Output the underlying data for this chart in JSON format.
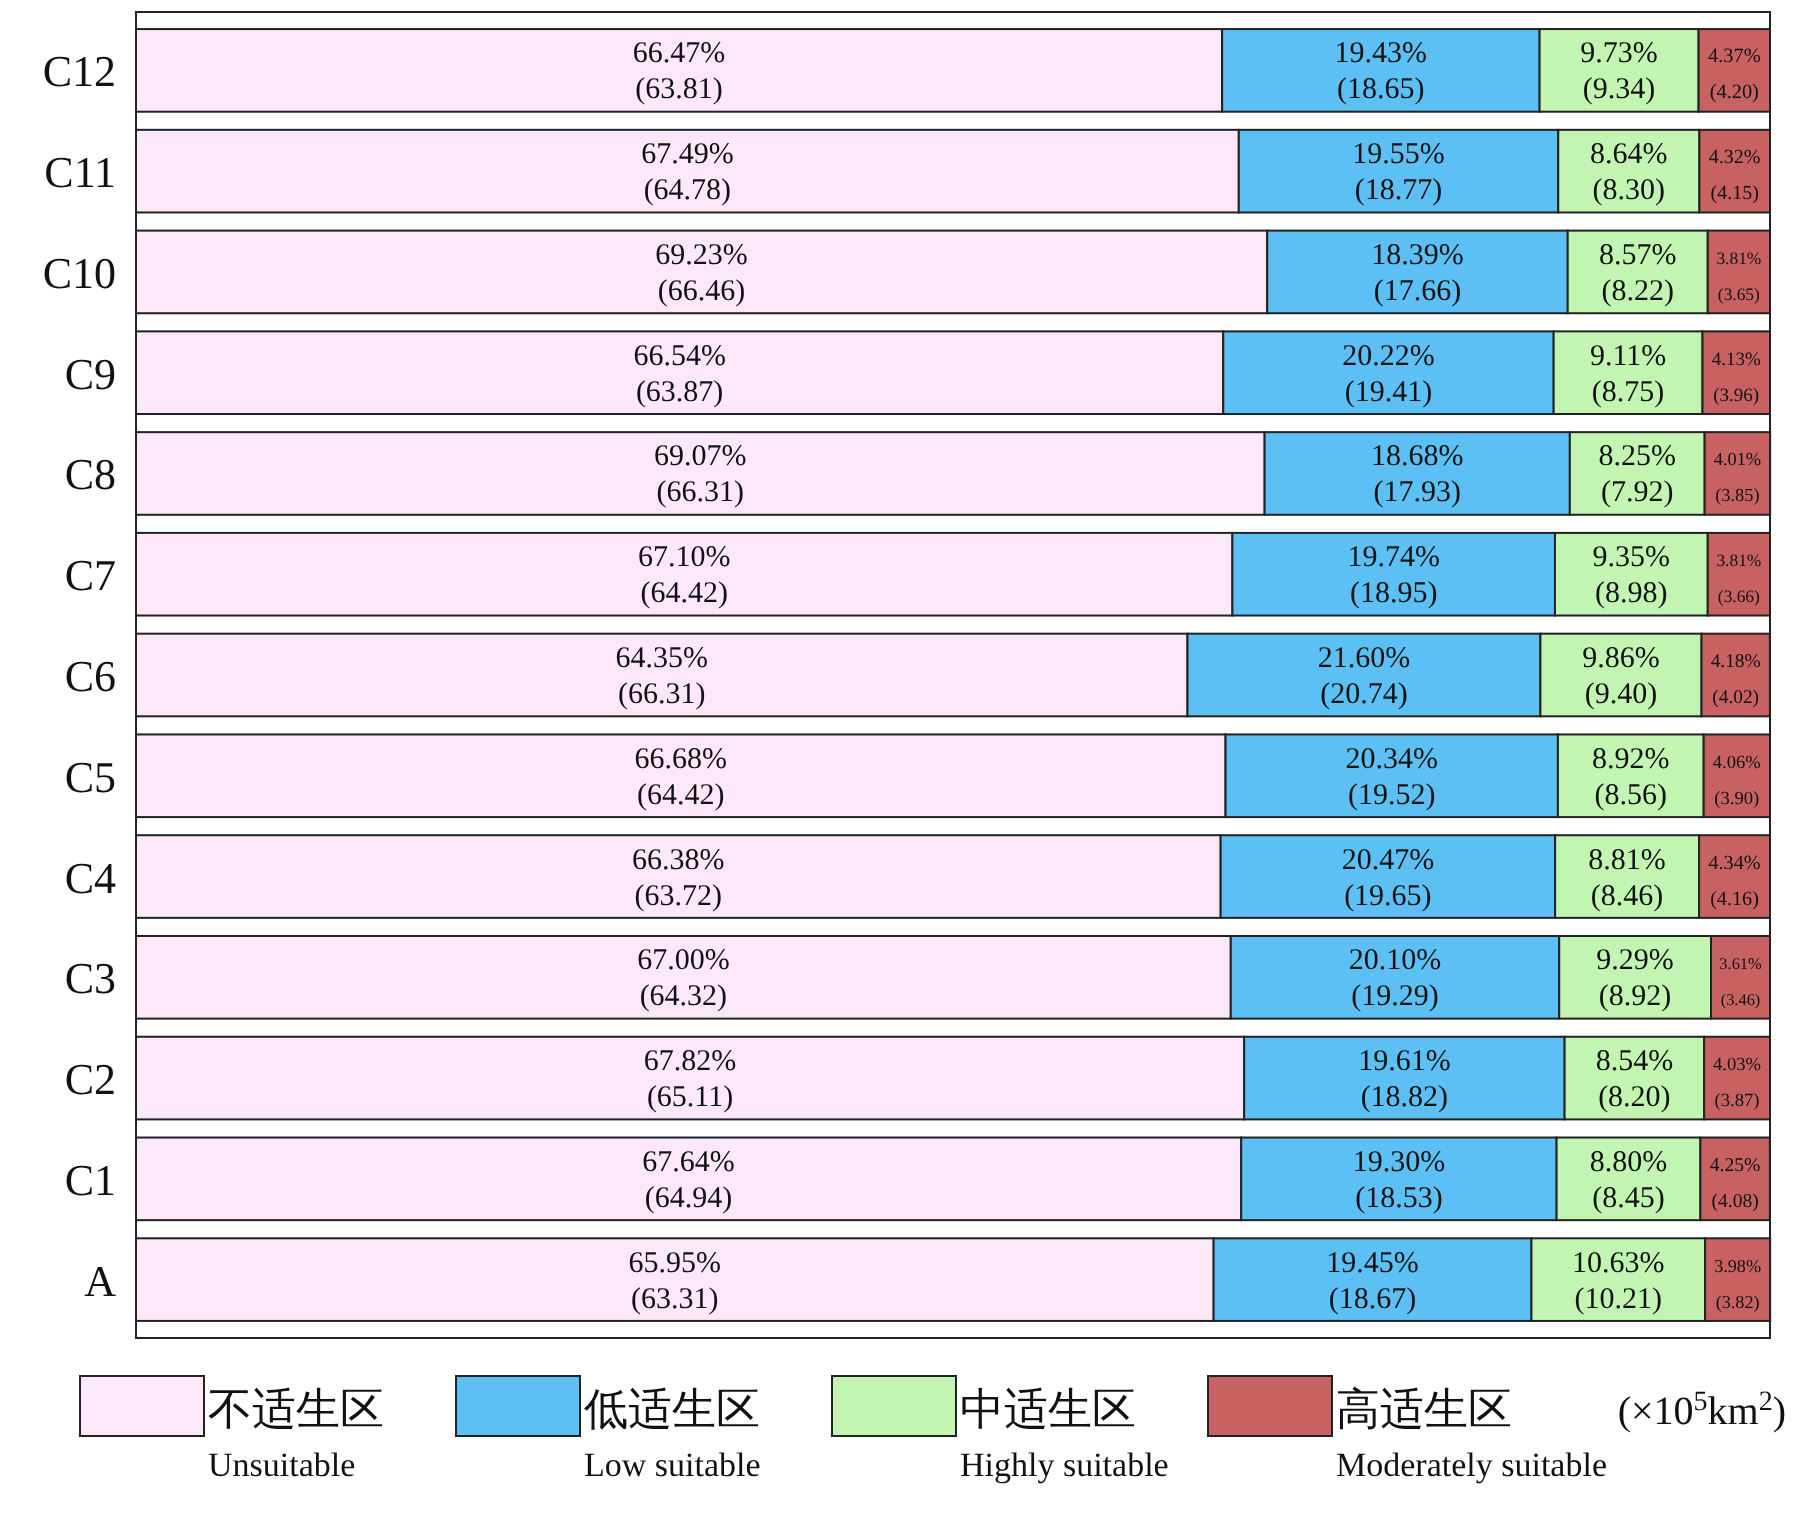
{
  "chart_data": {
    "type": "bar",
    "orientation": "horizontal",
    "stacked": true,
    "legend": "bottom",
    "xlim": [
      0,
      100
    ],
    "categories": [
      "C12",
      "C11",
      "C10",
      "C9",
      "C8",
      "C7",
      "C6",
      "C5",
      "C4",
      "C3",
      "C2",
      "C1",
      "A"
    ],
    "annotations": [
      "(×10$^{5}$km$^{2}$)"
    ],
    "series": [
      {
        "name": "不适生区\nUnsuitable",
        "color": "#fce8f8",
        "values": [
          66.47,
          67.49,
          69.23,
          66.54,
          69.07,
          67.1,
          64.35,
          66.68,
          66.38,
          67.0,
          67.82,
          67.64,
          65.95
        ],
        "value_labels": [
          "66.47%\n(63.81)",
          "67.49%\n(64.78)",
          "69.23%\n(66.46)",
          "66.54%\n(63.87)",
          "69.07%\n(66.31)",
          "67.10%\n(64.42)",
          "64.35%\n(66.31)",
          "66.68%\n(64.42)",
          "66.38%\n(63.72)",
          "67.00%\n(64.32)",
          "67.82%\n(65.11)",
          "67.64%\n(64.94)",
          "65.95%\n(63.31)"
        ]
      },
      {
        "name": "低适生区\nLow suitable",
        "color": "#5cc0f5",
        "values": [
          19.43,
          19.55,
          18.39,
          20.22,
          18.68,
          19.74,
          21.6,
          20.34,
          20.47,
          20.1,
          19.61,
          19.3,
          19.45
        ],
        "value_labels": [
          "19.43%\n(18.65)",
          "19.55%\n(18.77)",
          "18.39%\n(17.66)",
          "20.22%\n(19.41)",
          "18.68%\n(17.93)",
          "19.74%\n(18.95)",
          "21.60%\n(20.74)",
          "20.34%\n(19.52)",
          "20.47%\n(19.65)",
          "20.10%\n(19.29)",
          "19.61%\n(18.82)",
          "19.30%\n(18.53)",
          "19.45%\n(18.67)"
        ]
      },
      {
        "name": "中适生区\nHighly suitable",
        "color": "#c2f5b2",
        "values": [
          9.73,
          8.64,
          8.57,
          9.11,
          8.25,
          9.35,
          9.86,
          8.92,
          8.81,
          9.29,
          8.54,
          8.8,
          10.63
        ],
        "value_labels": [
          "9.73%\n(9.34)",
          "8.64%\n(8.30)",
          "8.57%\n(8.22)",
          "9.11%\n(8.75)",
          "8.25%\n(7.92)",
          "9.35%\n(8.98)",
          "9.86%\n(9.40)",
          "8.92%\n(8.56)",
          "8.81%\n(8.46)",
          "9.29%\n(8.92)",
          "8.54%\n(8.20)",
          "8.80%\n(8.45)",
          "10.63%\n(10.21)"
        ]
      },
      {
        "name": "高适生区\nModerately suitable",
        "color": "#c86262",
        "values": [
          4.37,
          4.32,
          3.81,
          4.13,
          4.01,
          3.81,
          4.18,
          4.06,
          4.34,
          3.61,
          4.03,
          4.25,
          3.98
        ],
        "value_labels": [
          "4.37%\n(4.20)",
          "4.32%\n(4.15)",
          "3.81%\n(3.65)",
          "4.13%\n(3.96)",
          "4.01%\n(3.85)",
          "3.81%\n(3.66)",
          "4.18%\n(4.02)",
          "4.06%\n(3.90)",
          "4.34%\n(4.16)",
          "3.61%\n(3.46)",
          "4.03%\n(3.87)",
          "4.25%\n(4.08)",
          "3.98%\n(3.82)"
        ]
      }
    ]
  }
}
